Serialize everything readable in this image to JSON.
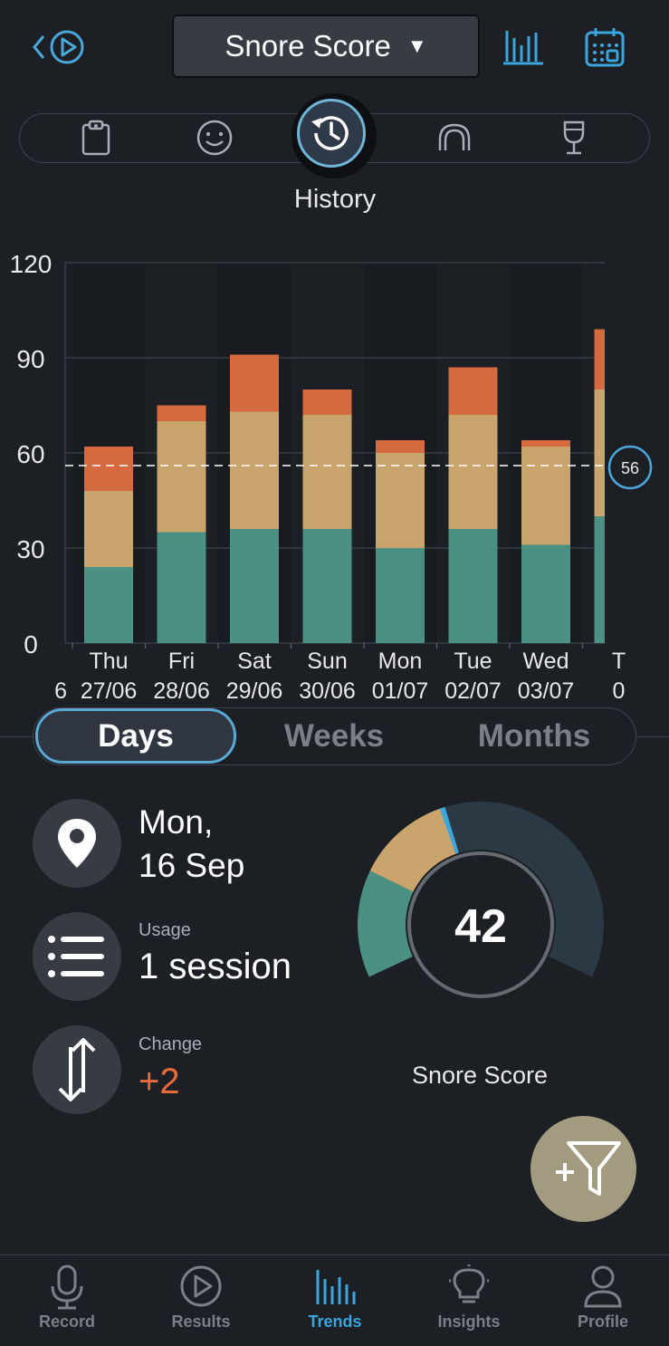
{
  "header": {
    "title": "Snore Score",
    "caret": "▼",
    "icons": [
      "back-play-icon",
      "bar-chart-icon",
      "calendar-icon"
    ]
  },
  "categories": {
    "items": [
      "clipboard-icon",
      "smiley-icon",
      "history-icon",
      "mouthguard-icon",
      "wine-glass-icon"
    ],
    "active_label": "History"
  },
  "chart_data": {
    "type": "bar",
    "stacked": true,
    "ylim": [
      0,
      120
    ],
    "yticks": [
      "0",
      "30",
      "60",
      "90",
      "120"
    ],
    "categories": [
      {
        "day": "Thu",
        "date": "27/06"
      },
      {
        "day": "Fri",
        "date": "28/06"
      },
      {
        "day": "Sat",
        "date": "29/06"
      },
      {
        "day": "Sun",
        "date": "30/06"
      },
      {
        "day": "Mon",
        "date": "01/07"
      },
      {
        "day": "Tue",
        "date": "02/07"
      },
      {
        "day": "Wed",
        "date": "03/07"
      },
      {
        "day": "T",
        "date": "0"
      }
    ],
    "series": [
      {
        "color": "#4a9183",
        "values": [
          24,
          35,
          36,
          36,
          30,
          36,
          31,
          40
        ]
      },
      {
        "color": "#c9a46c",
        "values": [
          24,
          35,
          37,
          36,
          30,
          36,
          31,
          40
        ]
      },
      {
        "color": "#d46a3d",
        "values": [
          14,
          5,
          18,
          8,
          4,
          15,
          2,
          19
        ]
      }
    ],
    "reference_line": 56,
    "reference_label": "56",
    "left_partial_label": "6"
  },
  "range_selector": {
    "options": [
      "Days",
      "Weeks",
      "Months"
    ],
    "selected": "Days"
  },
  "summary": {
    "date_line1": "Mon,",
    "date_line2": "16 Sep",
    "usage_label": "Usage",
    "usage_value": "1 session",
    "change_label": "Change",
    "change_value": "+2",
    "change_color": "#e86b3a",
    "score": "42",
    "score_label": "Snore Score",
    "score_fraction": 0.42
  },
  "fab": {
    "icon": "add-filter-icon"
  },
  "tabbar": {
    "items": [
      {
        "label": "Record",
        "icon": "microphone-icon"
      },
      {
        "label": "Results",
        "icon": "play-circle-icon"
      },
      {
        "label": "Trends",
        "icon": "bar-chart-icon"
      },
      {
        "label": "Insights",
        "icon": "lightbulb-icon"
      },
      {
        "label": "Profile",
        "icon": "person-icon"
      }
    ],
    "active": "Trends",
    "accent": "#3aa6dd"
  }
}
